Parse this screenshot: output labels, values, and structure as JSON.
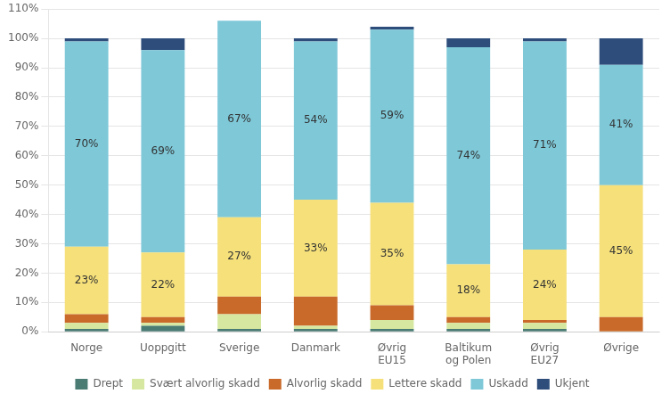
{
  "chart_data": {
    "type": "bar",
    "stacked": true,
    "categories": [
      "Norge",
      "Uoppgitt",
      "Sverige",
      "Danmark",
      "Øvrig\nEU15",
      "Baltikum\nog Polen",
      "Øvrig\nEU27",
      "Øvrige"
    ],
    "series": [
      {
        "name": "Drept",
        "color": "#4a7c74",
        "values": [
          1,
          2,
          1,
          1,
          1,
          1,
          1,
          0
        ]
      },
      {
        "name": "Svært alvorlig skadd",
        "color": "#d6e8a0",
        "values": [
          2,
          1,
          5,
          1,
          3,
          2,
          2,
          0
        ]
      },
      {
        "name": "Alvorlig skadd",
        "color": "#c96a2a",
        "values": [
          3,
          2,
          6,
          10,
          5,
          2,
          1,
          5
        ]
      },
      {
        "name": "Lettere skadd",
        "color": "#f5e07a",
        "values": [
          23,
          22,
          27,
          33,
          35,
          18,
          24,
          45
        ],
        "value_labels": [
          "23%",
          "22%",
          "27%",
          "33%",
          "35%",
          "18%",
          "24%",
          "45%"
        ]
      },
      {
        "name": "Uskadd",
        "color": "#7ec8d8",
        "values": [
          70,
          69,
          67,
          54,
          59,
          74,
          71,
          41
        ],
        "value_labels": [
          "70%",
          "69%",
          "67%",
          "54%",
          "59%",
          "74%",
          "71%",
          "41%"
        ]
      },
      {
        "name": "Ukjent",
        "color": "#2e4d7b",
        "values": [
          1,
          4,
          0,
          1,
          1,
          3,
          1,
          9
        ]
      }
    ],
    "ylim": [
      0,
      110
    ],
    "yticks": [
      {
        "value": 0,
        "label": "0%"
      },
      {
        "value": 10,
        "label": "10%"
      },
      {
        "value": 20,
        "label": "20%"
      },
      {
        "value": 30,
        "label": "30%"
      },
      {
        "value": 40,
        "label": "40%"
      },
      {
        "value": 50,
        "label": "50%"
      },
      {
        "value": 60,
        "label": "60%"
      },
      {
        "value": 70,
        "label": "70%"
      },
      {
        "value": 80,
        "label": "80%"
      },
      {
        "value": 90,
        "label": "90%"
      },
      {
        "value": 100,
        "label": "100%"
      },
      {
        "value": 110,
        "label": "110%"
      }
    ],
    "grid": true,
    "legend": "bottom"
  }
}
